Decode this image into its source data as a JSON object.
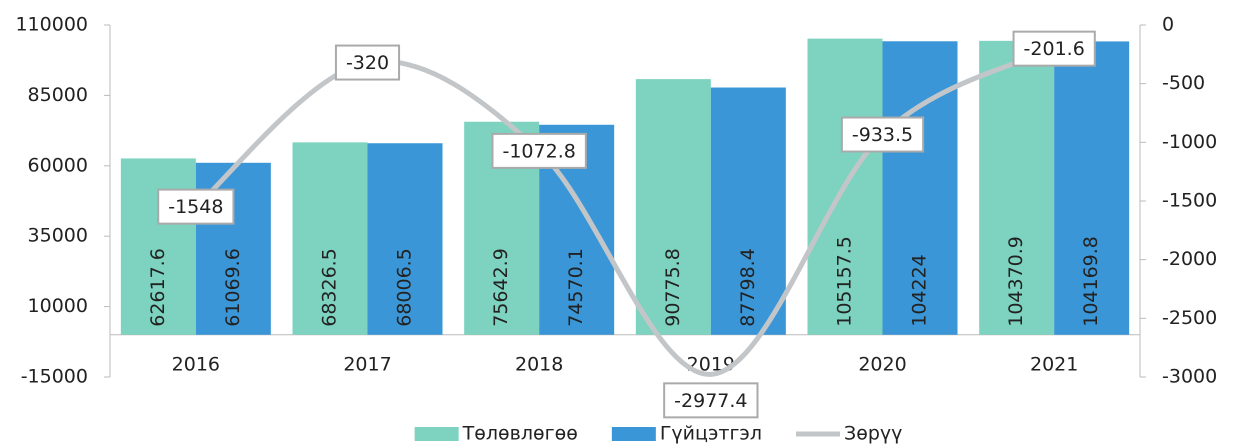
{
  "chart_data": {
    "type": "bar",
    "categories": [
      "2016",
      "2017",
      "2018",
      "2019",
      "2020",
      "2021"
    ],
    "series": [
      {
        "name": "Төлөвлөгөө",
        "color": "#7dd3c0",
        "values": [
          62617.6,
          68326.5,
          75642.9,
          90775.8,
          105157.5,
          104370.9
        ]
      },
      {
        "name": "Гүйцэтгэл",
        "color": "#3a96d6",
        "values": [
          61069.6,
          68006.5,
          74570.1,
          87798.4,
          104224,
          104169.8
        ]
      },
      {
        "name": "Зөрүү",
        "color": "#c3c6c9",
        "type": "line",
        "axis": "y2",
        "values": [
          -1548,
          -320,
          -1072.8,
          -2977.4,
          -933.5,
          -201.6
        ]
      }
    ],
    "ylim": [
      -15000,
      110000
    ],
    "yticks": [
      -15000,
      10000,
      35000,
      60000,
      85000,
      110000
    ],
    "y2lim": [
      -3000,
      0
    ],
    "y2ticks": [
      -3000,
      -2500,
      -2000,
      -1500,
      -1000,
      -500,
      0
    ],
    "legend": "bottom"
  }
}
